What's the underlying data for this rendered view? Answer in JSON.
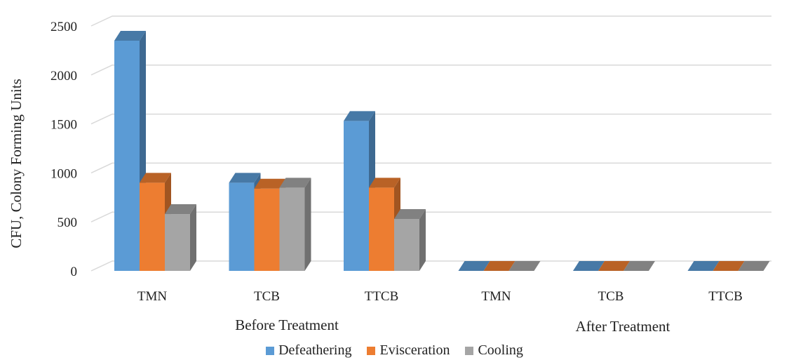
{
  "chart_data": {
    "type": "bar",
    "ylabel": "CFU, Colony Forming Units",
    "ylim": [
      0,
      2500
    ],
    "yticks": [
      "0",
      "500",
      "1000",
      "1500",
      "2000",
      "2500"
    ],
    "yticks_values": [
      0,
      500,
      1000,
      1500,
      2000,
      2500
    ],
    "categories": [
      "TMN",
      "TCB",
      "TTCB",
      "TMN",
      "TCB",
      "TTCB"
    ],
    "groups": [
      "Before Treatment",
      "After Treatment"
    ],
    "grid": true,
    "legend_position": "bottom",
    "series": [
      {
        "name": "Defeathering",
        "color": "#5B9BD5",
        "values": [
          2350,
          900,
          1530,
          0,
          0,
          0
        ]
      },
      {
        "name": "Evisceration",
        "color": "#ED7D31",
        "values": [
          900,
          840,
          850,
          0,
          0,
          0
        ]
      },
      {
        "name": "Cooling",
        "color": "#A5A5A5",
        "values": [
          580,
          850,
          530,
          0,
          0,
          0
        ]
      }
    ]
  }
}
